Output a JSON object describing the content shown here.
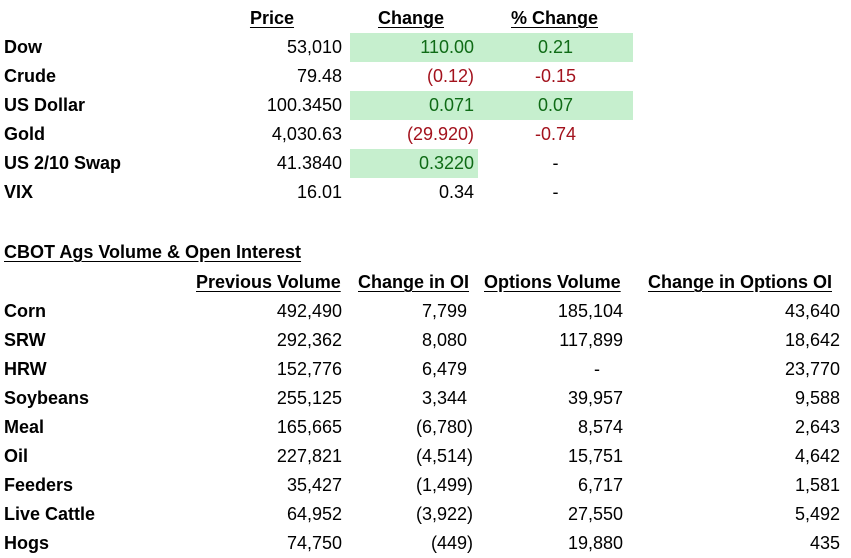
{
  "markets": {
    "headers": {
      "price": "Price",
      "change": "Change ",
      "pct_change": "% Change"
    },
    "rows": [
      {
        "name": "Dow",
        "price": "53,010",
        "change": "110.00",
        "pct": "0.21",
        "change_tone": "positive",
        "pct_tone": "positive"
      },
      {
        "name": "Crude",
        "price": "79.48",
        "change": "(0.12)",
        "pct": "-0.15",
        "change_tone": "negative",
        "pct_tone": "negative"
      },
      {
        "name": "US Dollar",
        "price": "100.3450",
        "change": "0.071",
        "pct": "0.07",
        "change_tone": "positive",
        "pct_tone": "positive"
      },
      {
        "name": "Gold",
        "price": "4,030.63",
        "change": "(29.920)",
        "pct": "-0.74",
        "change_tone": "negative",
        "pct_tone": "negative"
      },
      {
        "name": "US 2/10 Swap",
        "price": "41.3840",
        "change": "0.3220",
        "pct": "-",
        "change_tone": "positive",
        "pct_tone": "neutral"
      },
      {
        "name": "VIX",
        "price": "16.01",
        "change": "0.34",
        "pct": "-",
        "change_tone": "neutral",
        "pct_tone": "neutral"
      }
    ]
  },
  "cbot": {
    "title": "CBOT Ags Volume & Open Interest",
    "headers": {
      "prev_volume": "Previous Volume",
      "change_oi": "Change in OI",
      "options_volume": "Options Volume",
      "change_options_oi": "Change in Options OI"
    },
    "rows": [
      {
        "name": "Corn",
        "prev_volume": "492,490",
        "change_oi": "7,799",
        "options_volume": "185,104",
        "change_options_oi": "43,640"
      },
      {
        "name": "SRW",
        "prev_volume": "292,362",
        "change_oi": "8,080",
        "options_volume": "117,899",
        "change_options_oi": "18,642"
      },
      {
        "name": "HRW",
        "prev_volume": "152,776",
        "change_oi": "6,479",
        "options_volume": "-",
        "change_options_oi": "23,770"
      },
      {
        "name": "Soybeans",
        "prev_volume": "255,125",
        "change_oi": "3,344",
        "options_volume": "39,957",
        "change_options_oi": "9,588"
      },
      {
        "name": "Meal",
        "prev_volume": "165,665",
        "change_oi": "(6,780)",
        "options_volume": "8,574",
        "change_options_oi": "2,643"
      },
      {
        "name": "Oil",
        "prev_volume": "227,821",
        "change_oi": "(4,514)",
        "options_volume": "15,751",
        "change_options_oi": "4,642"
      },
      {
        "name": "Feeders",
        "prev_volume": "35,427",
        "change_oi": "(1,499)",
        "options_volume": "6,717",
        "change_options_oi": "1,581"
      },
      {
        "name": "Live Cattle",
        "prev_volume": "64,952",
        "change_oi": "(3,922)",
        "options_volume": "27,550",
        "change_options_oi": "5,492"
      },
      {
        "name": "Hogs",
        "prev_volume": "74,750",
        "change_oi": "(449)",
        "options_volume": "19,880",
        "change_options_oi": "435"
      }
    ]
  },
  "colors": {
    "positive_text": "#0f6b16",
    "negative_text": "#a3121d",
    "positive_fill": "#c6efce"
  }
}
